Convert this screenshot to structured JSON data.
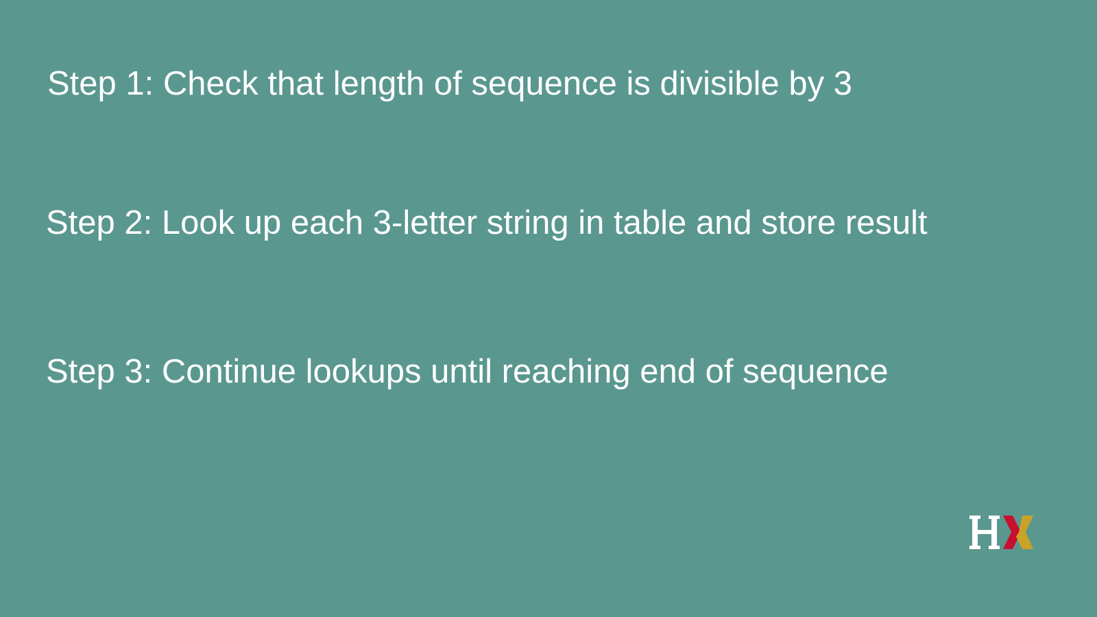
{
  "slide": {
    "background_color": "#5a978f",
    "text_color": "#ffffff",
    "steps": [
      {
        "text": "Step 1: Check that length of sequence is divisible by 3"
      },
      {
        "text": "Step 2: Look up each 3-letter string in table and store result"
      },
      {
        "text": "Step 3: Continue lookups until reaching end of sequence"
      }
    ]
  },
  "logo": {
    "icon": "hx-logo",
    "text": "HX",
    "colors": {
      "h": "#ffffff",
      "x_left": "#c8102e",
      "x_right": "#c9a227"
    }
  }
}
